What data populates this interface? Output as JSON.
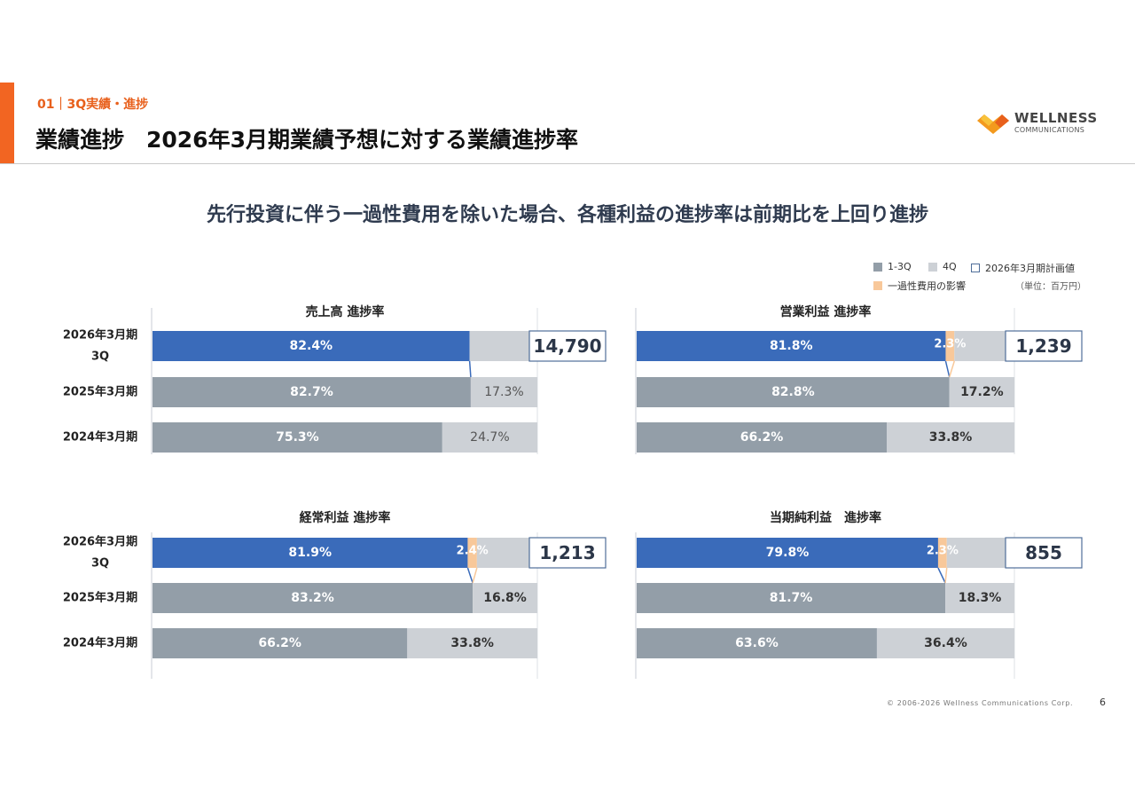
{
  "header": {
    "section_label": "01｜3Q実績・進捗",
    "title": "業績進捗　2026年3月期業績予想に対する業績進捗率"
  },
  "logo": {
    "line1": "WELLNESS",
    "line2": "COMMUNICATIONS"
  },
  "headline": "先行投資に伴う一過性費用を除いた場合、各種利益の進捗率は前期比を上回り進捗",
  "legend": {
    "q13": "1-3Q",
    "q4": "4Q",
    "plan": "2026年3月期計画値",
    "onetime": "一過性費用の影響",
    "unit": "（単位：百万円）"
  },
  "colors": {
    "current": "#3a6bba",
    "past": "#939ea8",
    "q4": "#cdd1d6",
    "onetime": "#f8c89a",
    "accent": "#f26522",
    "plan_border": "#4f6e99"
  },
  "chart_data": [
    {
      "type": "bar",
      "title": "売上高 進捗率",
      "categories": [
        "2026年3月期\n3Q",
        "2025年3月期",
        "2024年3月期"
      ],
      "series": [
        {
          "name": "1-3Q",
          "values": [
            82.4,
            82.7,
            75.3
          ],
          "labels": [
            "82.4%",
            "82.7%",
            "75.3%"
          ]
        },
        {
          "name": "一過性費用の影響",
          "values": [
            0,
            0,
            0
          ],
          "labels": [
            "",
            "",
            ""
          ]
        },
        {
          "name": "4Q",
          "values": [
            17.6,
            17.3,
            24.7
          ],
          "labels": [
            "",
            "17.3%",
            "24.7%"
          ]
        }
      ],
      "plan_value": "14,790",
      "xlim": [
        0,
        100
      ]
    },
    {
      "type": "bar",
      "title": "営業利益 進捗率",
      "categories": [
        "2026年3月期\n3Q",
        "2025年3月期",
        "2024年3月期"
      ],
      "series": [
        {
          "name": "1-3Q",
          "values": [
            81.8,
            82.8,
            66.2
          ],
          "labels": [
            "81.8%",
            "82.8%",
            "66.2%"
          ]
        },
        {
          "name": "一過性費用の影響",
          "values": [
            2.3,
            0,
            0
          ],
          "labels": [
            "2.3%",
            "",
            ""
          ]
        },
        {
          "name": "4Q",
          "values": [
            15.9,
            17.2,
            33.8
          ],
          "labels": [
            "",
            "17.2%",
            "33.8%"
          ]
        }
      ],
      "plan_value": "1,239",
      "xlim": [
        0,
        100
      ]
    },
    {
      "type": "bar",
      "title": "経常利益 進捗率",
      "categories": [
        "2026年3月期\n3Q",
        "2025年3月期",
        "2024年3月期"
      ],
      "series": [
        {
          "name": "1-3Q",
          "values": [
            81.9,
            83.2,
            66.2
          ],
          "labels": [
            "81.9%",
            "83.2%",
            "66.2%"
          ]
        },
        {
          "name": "一過性費用の影響",
          "values": [
            2.4,
            0,
            0
          ],
          "labels": [
            "2.4%",
            "",
            ""
          ]
        },
        {
          "name": "4Q",
          "values": [
            15.7,
            16.8,
            33.8
          ],
          "labels": [
            "",
            "16.8%",
            "33.8%"
          ]
        }
      ],
      "plan_value": "1,213",
      "xlim": [
        0,
        100
      ]
    },
    {
      "type": "bar",
      "title": "当期純利益　進捗率",
      "categories": [
        "2026年3月期\n3Q",
        "2025年3月期",
        "2024年3月期"
      ],
      "series": [
        {
          "name": "1-3Q",
          "values": [
            79.8,
            81.7,
            63.6
          ],
          "labels": [
            "79.8%",
            "81.7%",
            "63.6%"
          ]
        },
        {
          "name": "一過性費用の影響",
          "values": [
            2.3,
            0,
            0
          ],
          "labels": [
            "2.3%",
            "",
            ""
          ]
        },
        {
          "name": "4Q",
          "values": [
            17.9,
            18.3,
            36.4
          ],
          "labels": [
            "",
            "18.3%",
            "36.4%"
          ]
        }
      ],
      "plan_value": "855",
      "xlim": [
        0,
        100
      ]
    }
  ],
  "footer": {
    "copyright": "© 2006-2026 Wellness Communications Corp.",
    "page_number": "6"
  }
}
